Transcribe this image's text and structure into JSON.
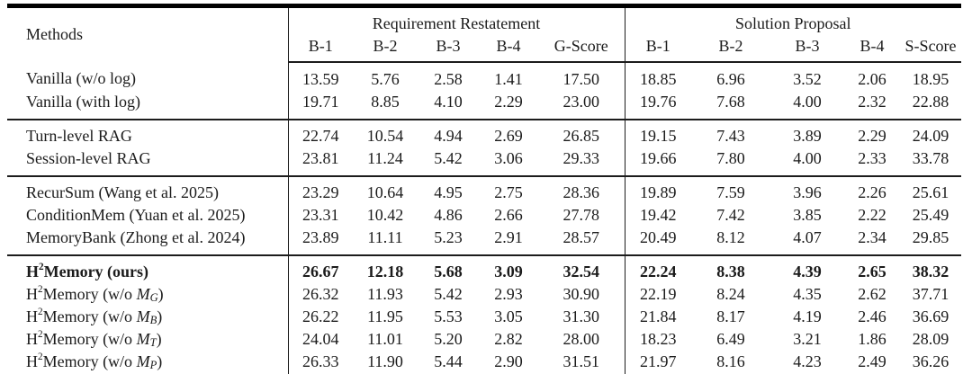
{
  "table": {
    "methods_header": "Methods",
    "groups": [
      {
        "label": "Requirement Restatement",
        "columns": [
          "B-1",
          "B-2",
          "B-3",
          "B-4",
          "G-Score"
        ]
      },
      {
        "label": "Solution Proposal",
        "columns": [
          "B-1",
          "B-2",
          "B-3",
          "B-4",
          "S-Score"
        ]
      }
    ],
    "row_groups": [
      {
        "rows": [
          {
            "method": [
              {
                "t": "Vanilla (w/o log)"
              }
            ],
            "bold": false,
            "requirement_restatement": [
              "13.59",
              "5.76",
              "2.58",
              "1.41",
              "17.50"
            ],
            "solution_proposal": [
              "18.85",
              "6.96",
              "3.52",
              "2.06",
              "18.95"
            ]
          },
          {
            "method": [
              {
                "t": "Vanilla (with log)"
              }
            ],
            "bold": false,
            "requirement_restatement": [
              "19.71",
              "8.85",
              "4.10",
              "2.29",
              "23.00"
            ],
            "solution_proposal": [
              "19.76",
              "7.68",
              "4.00",
              "2.32",
              "22.88"
            ]
          }
        ]
      },
      {
        "rows": [
          {
            "method": [
              {
                "t": "Turn-level RAG"
              }
            ],
            "bold": false,
            "requirement_restatement": [
              "22.74",
              "10.54",
              "4.94",
              "2.69",
              "26.85"
            ],
            "solution_proposal": [
              "19.15",
              "7.43",
              "3.89",
              "2.29",
              "24.09"
            ]
          },
          {
            "method": [
              {
                "t": "Session-level RAG"
              }
            ],
            "bold": false,
            "requirement_restatement": [
              "23.81",
              "11.24",
              "5.42",
              "3.06",
              "29.33"
            ],
            "solution_proposal": [
              "19.66",
              "7.80",
              "4.00",
              "2.33",
              "33.78"
            ]
          }
        ]
      },
      {
        "rows": [
          {
            "method": [
              {
                "t": "RecurSum (Wang et al. 2025)"
              }
            ],
            "bold": false,
            "requirement_restatement": [
              "23.29",
              "10.64",
              "4.95",
              "2.75",
              "28.36"
            ],
            "solution_proposal": [
              "19.89",
              "7.59",
              "3.96",
              "2.26",
              "25.61"
            ]
          },
          {
            "method": [
              {
                "t": "ConditionMem (Yuan et al. 2025)"
              }
            ],
            "bold": false,
            "requirement_restatement": [
              "23.31",
              "10.42",
              "4.86",
              "2.66",
              "27.78"
            ],
            "solution_proposal": [
              "19.42",
              "7.42",
              "3.85",
              "2.22",
              "25.49"
            ]
          },
          {
            "method": [
              {
                "t": "MemoryBank (Zhong et al. 2024)"
              }
            ],
            "bold": false,
            "requirement_restatement": [
              "23.89",
              "11.11",
              "5.23",
              "2.91",
              "28.57"
            ],
            "solution_proposal": [
              "20.49",
              "8.12",
              "4.07",
              "2.34",
              "29.85"
            ]
          }
        ]
      },
      {
        "rows": [
          {
            "method": [
              {
                "t": "H"
              },
              {
                "sup": "2"
              },
              {
                "t": "Memory (ours)"
              }
            ],
            "bold": true,
            "requirement_restatement": [
              "26.67",
              "12.18",
              "5.68",
              "3.09",
              "32.54"
            ],
            "solution_proposal": [
              "22.24",
              "8.38",
              "4.39",
              "2.65",
              "38.32"
            ]
          },
          {
            "method": [
              {
                "t": "H"
              },
              {
                "sup": "2"
              },
              {
                "t": "Memory (w/o "
              },
              {
                "i": "M"
              },
              {
                "isub": "G"
              },
              {
                "t": ")"
              }
            ],
            "bold": false,
            "requirement_restatement": [
              "26.32",
              "11.93",
              "5.42",
              "2.93",
              "30.90"
            ],
            "solution_proposal": [
              "22.19",
              "8.24",
              "4.35",
              "2.62",
              "37.71"
            ]
          },
          {
            "method": [
              {
                "t": "H"
              },
              {
                "sup": "2"
              },
              {
                "t": "Memory (w/o "
              },
              {
                "i": "M"
              },
              {
                "isub": "B"
              },
              {
                "t": ")"
              }
            ],
            "bold": false,
            "requirement_restatement": [
              "26.22",
              "11.95",
              "5.53",
              "3.05",
              "31.30"
            ],
            "solution_proposal": [
              "21.84",
              "8.17",
              "4.19",
              "2.46",
              "36.69"
            ]
          },
          {
            "method": [
              {
                "t": "H"
              },
              {
                "sup": "2"
              },
              {
                "t": "Memory (w/o "
              },
              {
                "i": "M"
              },
              {
                "isub": "T"
              },
              {
                "t": ")"
              }
            ],
            "bold": false,
            "requirement_restatement": [
              "24.04",
              "11.01",
              "5.20",
              "2.82",
              "28.00"
            ],
            "solution_proposal": [
              "18.23",
              "6.49",
              "3.21",
              "1.86",
              "28.09"
            ]
          },
          {
            "method": [
              {
                "t": "H"
              },
              {
                "sup": "2"
              },
              {
                "t": "Memory (w/o "
              },
              {
                "i": "M"
              },
              {
                "isub": "P"
              },
              {
                "t": ")"
              }
            ],
            "bold": false,
            "requirement_restatement": [
              "26.33",
              "11.90",
              "5.44",
              "2.90",
              "31.51"
            ],
            "solution_proposal": [
              "21.97",
              "8.16",
              "4.23",
              "2.49",
              "36.26"
            ]
          }
        ]
      }
    ]
  }
}
